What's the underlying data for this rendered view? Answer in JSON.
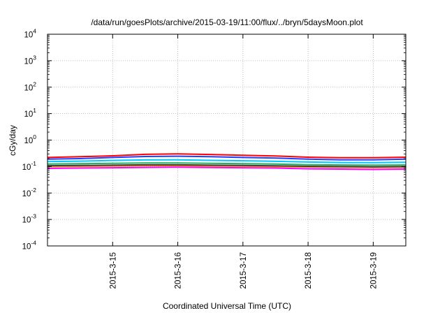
{
  "chart_data": {
    "type": "line",
    "title": "/data/run/goesPlots/archive/2015-03-19/11:00/flux/../bryn/5daysMoon.plot",
    "xlabel": "Coordinated Universal Time (UTC)",
    "ylabel": "cGy/day",
    "x_scale": "time",
    "y_scale": "log",
    "xlim": [
      "2015-03-14T00:00",
      "2015-03-19T12:00"
    ],
    "ylim": [
      0.0001,
      10000
    ],
    "x_ticks": [
      "2015-3-15",
      "2015-3-16",
      "2015-3-17",
      "2015-3-18",
      "2015-3-19"
    ],
    "y_ticks": [
      {
        "base": "10",
        "exp": "4"
      },
      {
        "base": "10",
        "exp": "3"
      },
      {
        "base": "10",
        "exp": "2"
      },
      {
        "base": "10",
        "exp": "1"
      },
      {
        "base": "10",
        "exp": "0"
      },
      {
        "base": "10",
        "exp": "-1"
      },
      {
        "base": "10",
        "exp": "-2"
      },
      {
        "base": "10",
        "exp": "-3"
      },
      {
        "base": "10",
        "exp": "-4"
      }
    ],
    "grid": true,
    "legend": "none",
    "series": [
      {
        "color": "#ff00ff",
        "x": [
          "2015-03-14T00:00",
          "2015-03-14T12:00",
          "2015-03-15T00:00",
          "2015-03-15T12:00",
          "2015-03-16T00:00",
          "2015-03-16T12:00",
          "2015-03-17T00:00",
          "2015-03-17T12:00",
          "2015-03-18T00:00",
          "2015-03-18T12:00",
          "2015-03-19T00:00",
          "2015-03-19T12:00"
        ],
        "values": [
          0.085,
          0.088,
          0.09,
          0.093,
          0.095,
          0.092,
          0.09,
          0.088,
          0.082,
          0.08,
          0.078,
          0.08
        ]
      },
      {
        "color": "#ff8000",
        "x": [
          "2015-03-14T00:00",
          "2015-03-14T12:00",
          "2015-03-15T00:00",
          "2015-03-15T12:00",
          "2015-03-16T00:00",
          "2015-03-16T12:00",
          "2015-03-17T00:00",
          "2015-03-17T12:00",
          "2015-03-18T00:00",
          "2015-03-18T12:00",
          "2015-03-19T00:00",
          "2015-03-19T12:00"
        ],
        "values": [
          0.1,
          0.102,
          0.105,
          0.108,
          0.108,
          0.105,
          0.103,
          0.1,
          0.096,
          0.094,
          0.092,
          0.094
        ]
      },
      {
        "color": "#404040",
        "x": [
          "2015-03-14T00:00",
          "2015-03-14T12:00",
          "2015-03-15T00:00",
          "2015-03-15T12:00",
          "2015-03-16T00:00",
          "2015-03-16T12:00",
          "2015-03-17T00:00",
          "2015-03-17T12:00",
          "2015-03-18T00:00",
          "2015-03-18T12:00",
          "2015-03-19T00:00",
          "2015-03-19T12:00"
        ],
        "values": [
          0.108,
          0.11,
          0.113,
          0.116,
          0.116,
          0.113,
          0.11,
          0.107,
          0.102,
          0.1,
          0.098,
          0.1
        ]
      },
      {
        "color": "#20b060",
        "x": [
          "2015-03-14T00:00",
          "2015-03-14T12:00",
          "2015-03-15T00:00",
          "2015-03-15T12:00",
          "2015-03-16T00:00",
          "2015-03-16T12:00",
          "2015-03-17T00:00",
          "2015-03-17T12:00",
          "2015-03-18T00:00",
          "2015-03-18T12:00",
          "2015-03-19T00:00",
          "2015-03-19T12:00"
        ],
        "values": [
          0.125,
          0.128,
          0.132,
          0.136,
          0.137,
          0.133,
          0.128,
          0.124,
          0.118,
          0.115,
          0.113,
          0.115
        ]
      },
      {
        "color": "#00c8ff",
        "x": [
          "2015-03-14T00:00",
          "2015-03-14T12:00",
          "2015-03-15T00:00",
          "2015-03-15T12:00",
          "2015-03-16T00:00",
          "2015-03-16T12:00",
          "2015-03-17T00:00",
          "2015-03-17T12:00",
          "2015-03-18T00:00",
          "2015-03-18T12:00",
          "2015-03-19T00:00",
          "2015-03-19T12:00"
        ],
        "values": [
          0.155,
          0.16,
          0.17,
          0.178,
          0.18,
          0.172,
          0.165,
          0.158,
          0.148,
          0.142,
          0.14,
          0.145
        ]
      },
      {
        "color": "#2040ff",
        "x": [
          "2015-03-14T00:00",
          "2015-03-14T12:00",
          "2015-03-15T00:00",
          "2015-03-15T12:00",
          "2015-03-16T00:00",
          "2015-03-16T12:00",
          "2015-03-17T00:00",
          "2015-03-17T12:00",
          "2015-03-18T00:00",
          "2015-03-18T12:00",
          "2015-03-19T00:00",
          "2015-03-19T12:00"
        ],
        "values": [
          0.19,
          0.2,
          0.22,
          0.24,
          0.245,
          0.235,
          0.22,
          0.21,
          0.19,
          0.18,
          0.18,
          0.19
        ]
      },
      {
        "color": "#ff0000",
        "x": [
          "2015-03-14T00:00",
          "2015-03-14T12:00",
          "2015-03-15T00:00",
          "2015-03-15T12:00",
          "2015-03-16T00:00",
          "2015-03-16T12:00",
          "2015-03-17T00:00",
          "2015-03-17T12:00",
          "2015-03-18T00:00",
          "2015-03-18T12:00",
          "2015-03-19T00:00",
          "2015-03-19T12:00"
        ],
        "values": [
          0.22,
          0.235,
          0.255,
          0.29,
          0.3,
          0.285,
          0.265,
          0.25,
          0.225,
          0.215,
          0.215,
          0.225
        ]
      }
    ]
  }
}
